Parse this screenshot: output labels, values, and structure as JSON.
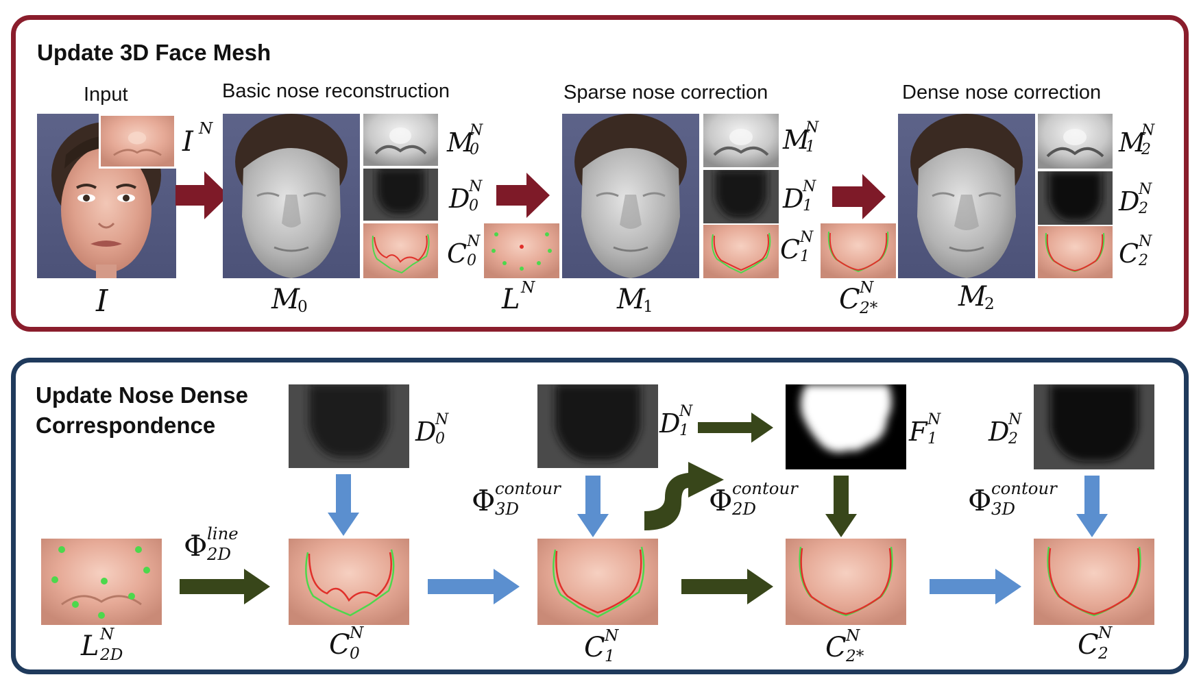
{
  "top_panel": {
    "title": "Update 3D Face Mesh",
    "captions": {
      "input": "Input",
      "basic": "Basic nose reconstruction",
      "sparse": "Sparse nose correction",
      "dense": "Dense nose correction"
    },
    "symbols": {
      "I": "I",
      "IN": {
        "base": "I",
        "sup": "N"
      },
      "M0": {
        "base": "M",
        "sub": "0"
      },
      "M1": {
        "base": "M",
        "sub": "1"
      },
      "M2": {
        "base": "M",
        "sub": "2"
      },
      "M0N": {
        "base": "M",
        "sup": "N",
        "sub": "0"
      },
      "D0N": {
        "base": "D",
        "sup": "N",
        "sub": "0"
      },
      "C0N": {
        "base": "C",
        "sup": "N",
        "sub": "0"
      },
      "LN": {
        "base": "L",
        "sup": "N"
      },
      "M1N": {
        "base": "M",
        "sup": "N",
        "sub": "1"
      },
      "D1N": {
        "base": "D",
        "sup": "N",
        "sub": "1"
      },
      "C1N": {
        "base": "C",
        "sup": "N",
        "sub": "1"
      },
      "C2sN": {
        "base": "C",
        "sup": "N",
        "sub": "2*"
      },
      "M2N": {
        "base": "M",
        "sup": "N",
        "sub": "2"
      },
      "D2N": {
        "base": "D",
        "sup": "N",
        "sub": "2"
      },
      "C2N": {
        "base": "C",
        "sup": "N",
        "sub": "2"
      }
    }
  },
  "bottom_panel": {
    "title_line1": "Update Nose Dense",
    "title_line2": "Correspondence",
    "symbols": {
      "D0N": {
        "base": "D",
        "sup": "N",
        "sub": "0"
      },
      "D1N": {
        "base": "D",
        "sup": "N",
        "sub": "1"
      },
      "F1N": {
        "base": "F",
        "sup": "N",
        "sub": "1"
      },
      "D2N": {
        "base": "D",
        "sup": "N",
        "sub": "2"
      },
      "L2DN": {
        "base": "L",
        "sup": "N",
        "sub": "2D"
      },
      "C0N": {
        "base": "C",
        "sup": "N",
        "sub": "0"
      },
      "C1N": {
        "base": "C",
        "sup": "N",
        "sub": "1"
      },
      "C2sN": {
        "base": "C",
        "sup": "N",
        "sub": "2*"
      },
      "C2N": {
        "base": "C",
        "sup": "N",
        "sub": "2"
      },
      "phi_line_2d": {
        "base": "Φ",
        "sup": "line",
        "sub": "2D"
      },
      "phi_contour_3d_a": {
        "base": "Φ",
        "sup": "contour",
        "sub": "3D"
      },
      "phi_contour_2d": {
        "base": "Φ",
        "sup": "contour",
        "sub": "2D"
      },
      "phi_contour_3d_b": {
        "base": "Φ",
        "sup": "contour",
        "sub": "3D"
      }
    }
  },
  "colors": {
    "top_border": "#8a1d2c",
    "bottom_border": "#1f3a5c",
    "red_arrow": "#7e1a28",
    "blue_arrow": "#5b8fcf",
    "green_arrow": "#38461a"
  }
}
